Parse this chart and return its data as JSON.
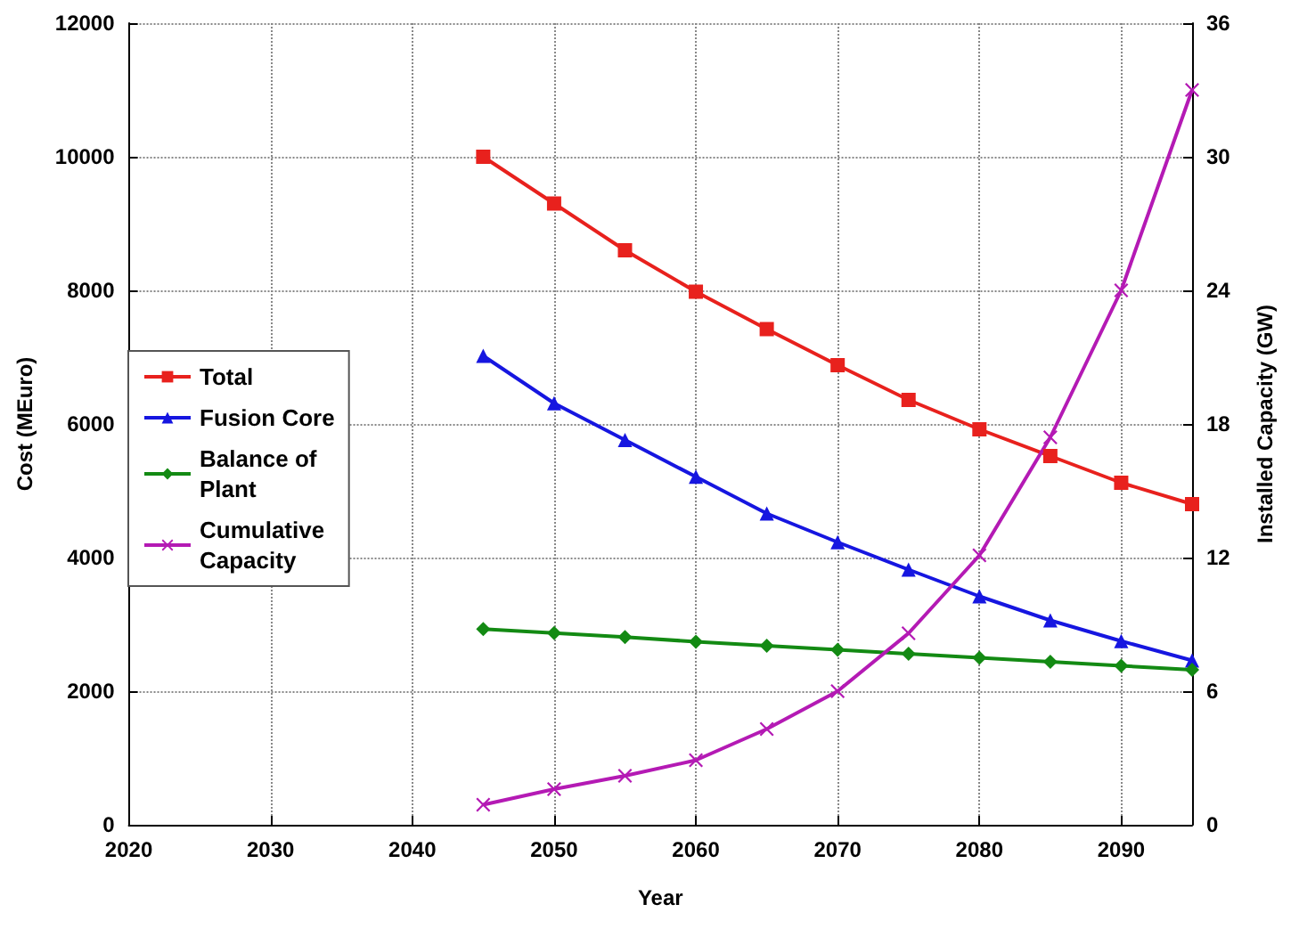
{
  "chart_data": {
    "type": "line",
    "xlabel": "Year",
    "ylabel": "Cost (MEuro)",
    "y2label": "Installed Capacity (GW)",
    "x": [
      2045,
      2050,
      2055,
      2060,
      2065,
      2070,
      2075,
      2080,
      2085,
      2090,
      2095
    ],
    "series": [
      {
        "name": "Total",
        "color": "#e8211d",
        "marker": "square",
        "values": [
          10000,
          9300,
          8600,
          7980,
          7420,
          6880,
          6360,
          5920,
          5520,
          5120,
          4800
        ]
      },
      {
        "name": "Fusion Core",
        "color": "#1616e0",
        "marker": "triangle",
        "values": [
          7020,
          6310,
          5760,
          5210,
          4660,
          4230,
          3820,
          3420,
          3060,
          2750,
          2460
        ]
      },
      {
        "name": "Balance of\nPlant",
        "color": "#138a13",
        "marker": "diamond",
        "values": [
          2930,
          2870,
          2810,
          2740,
          2680,
          2620,
          2560,
          2500,
          2440,
          2380,
          2320
        ]
      },
      {
        "name": "Cumulative\nCapacity",
        "color": "#b41ab4",
        "marker": "cross",
        "axis": "y2",
        "values": [
          0.9,
          1.6,
          2.2,
          2.9,
          4.3,
          6.0,
          8.6,
          12.1,
          17.4,
          24.0,
          33.0
        ]
      }
    ],
    "xlim": [
      2020,
      2095
    ],
    "xticks": [
      2020,
      2030,
      2040,
      2050,
      2060,
      2070,
      2080,
      2090
    ],
    "ylim": [
      0,
      12000
    ],
    "yticks": [
      0,
      2000,
      4000,
      6000,
      8000,
      10000,
      12000
    ],
    "y2lim": [
      0,
      36
    ],
    "y2ticks": [
      0,
      6,
      12,
      18,
      24,
      30,
      36
    ],
    "grid": true,
    "legend": "left",
    "line_style": "solid"
  }
}
